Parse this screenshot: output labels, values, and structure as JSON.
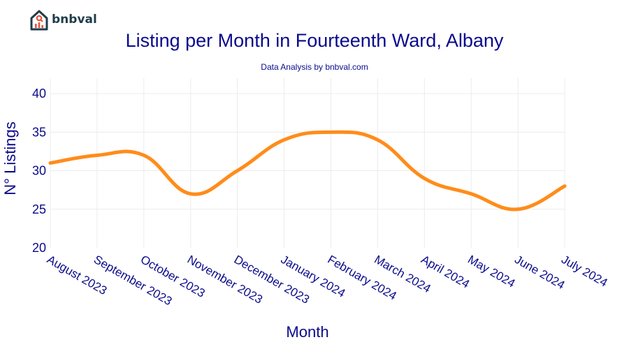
{
  "brand": {
    "name": "bnbval",
    "logo_icon": "house-chart-icon"
  },
  "chart_data": {
    "type": "line",
    "title": "Listing per Month in Fourteenth Ward, Albany",
    "subtitle": "Data Analysis by bnbval.com",
    "xlabel": "Month",
    "ylabel": "N° Listings",
    "categories": [
      "August 2023",
      "September 2023",
      "October 2023",
      "November 2023",
      "December 2023",
      "January 2024",
      "February 2024",
      "March 2024",
      "April 2024",
      "May 2024",
      "June 2024",
      "July 2024"
    ],
    "series": [
      {
        "name": "Listings",
        "values": [
          31,
          32,
          32,
          27,
          30,
          34,
          35,
          34,
          29,
          27,
          25,
          28
        ],
        "color": "#ff8c1a"
      }
    ],
    "ylim": [
      20,
      42
    ],
    "yticks": [
      20,
      25,
      30,
      35,
      40
    ],
    "grid": true
  }
}
